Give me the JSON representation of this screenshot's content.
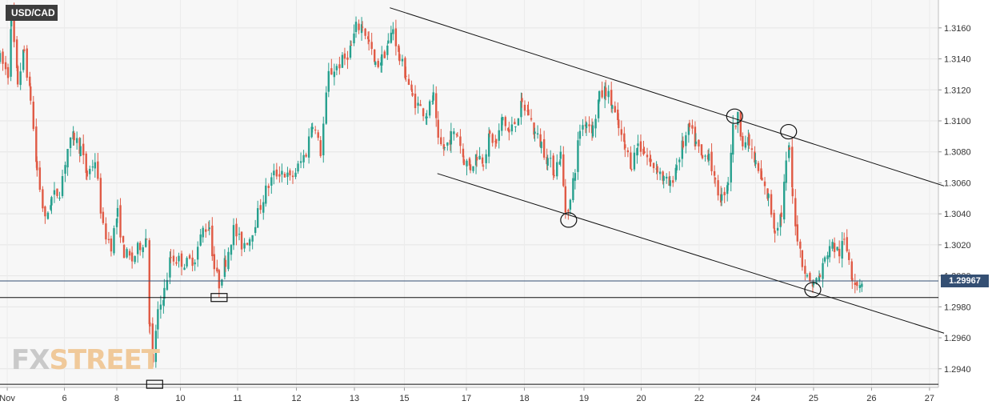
{
  "symbol": "USD/CAD",
  "watermark": {
    "fx": "FX",
    "street": "STREET"
  },
  "current_price_label": "1.29967",
  "colors": {
    "up": "#27a08e",
    "down": "#e05a45",
    "price_line": "#344f73",
    "plot_bg": "#f7f7f7"
  },
  "chart_data": {
    "type": "candlestick",
    "title": "USD/CAD",
    "ylim": [
      1.2928,
      1.3178
    ],
    "y_ticks": [
      1.294,
      1.296,
      1.298,
      1.3,
      1.302,
      1.304,
      1.306,
      1.308,
      1.31,
      1.312,
      1.314,
      1.316
    ],
    "y_tick_labels": [
      "1.2940",
      "1.2960",
      "1.2980",
      "1.3000",
      "1.3020",
      "1.3040",
      "1.3060",
      "1.3080",
      "1.3100",
      "1.3120",
      "1.3140",
      "1.3160"
    ],
    "x_range": [
      0,
      1165
    ],
    "x_ticks": [
      {
        "label": "Nov",
        "t": 9
      },
      {
        "label": "6",
        "t": 80
      },
      {
        "label": "8",
        "t": 145
      },
      {
        "label": "10",
        "t": 224
      },
      {
        "label": "11",
        "t": 295
      },
      {
        "label": "12",
        "t": 368
      },
      {
        "label": "13",
        "t": 440
      },
      {
        "label": "15",
        "t": 502
      },
      {
        "label": "17",
        "t": 579
      },
      {
        "label": "18",
        "t": 651
      },
      {
        "label": "19",
        "t": 725
      },
      {
        "label": "20",
        "t": 796
      },
      {
        "label": "22",
        "t": 868
      },
      {
        "label": "24",
        "t": 938
      },
      {
        "label": "25",
        "t": 1010
      },
      {
        "label": "26",
        "t": 1082
      },
      {
        "label": "27",
        "t": 1154
      }
    ],
    "current_price": 1.29967,
    "horizontal_levels": [
      1.2986,
      1.293
    ],
    "trend_lines": [
      {
        "from": [
          484,
          1.3173
        ],
        "to": [
          1172,
          1.3058
        ]
      },
      {
        "from": [
          543,
          1.3066
        ],
        "to": [
          1172,
          1.2963
        ]
      }
    ],
    "circle_markers": [
      [
        706,
        1.3036
      ],
      [
        912,
        1.3103
      ],
      [
        979,
        1.3093
      ],
      [
        1009,
        1.2991
      ]
    ],
    "box_markers": [
      [
        272,
        1.2986
      ],
      [
        192,
        1.293
      ]
    ],
    "price_path": [
      [
        0,
        1.314
      ],
      [
        10,
        1.313
      ],
      [
        14,
        1.3168
      ],
      [
        22,
        1.3125
      ],
      [
        30,
        1.3145
      ],
      [
        38,
        1.3115
      ],
      [
        46,
        1.3068
      ],
      [
        56,
        1.3035
      ],
      [
        64,
        1.305
      ],
      [
        74,
        1.3055
      ],
      [
        84,
        1.3082
      ],
      [
        92,
        1.309
      ],
      [
        100,
        1.3082
      ],
      [
        108,
        1.3065
      ],
      [
        118,
        1.3075
      ],
      [
        128,
        1.303
      ],
      [
        138,
        1.302
      ],
      [
        146,
        1.304
      ],
      [
        154,
        1.3015
      ],
      [
        164,
        1.301
      ],
      [
        174,
        1.302
      ],
      [
        182,
        1.3025
      ],
      [
        186,
        1.2965
      ],
      [
        190,
        1.2945
      ],
      [
        196,
        1.2975
      ],
      [
        204,
        1.299
      ],
      [
        212,
        1.3012
      ],
      [
        222,
        1.301
      ],
      [
        232,
        1.3008
      ],
      [
        242,
        1.3012
      ],
      [
        252,
        1.303
      ],
      [
        260,
        1.3032
      ],
      [
        266,
        1.3005
      ],
      [
        272,
        1.2995
      ],
      [
        280,
        1.301
      ],
      [
        290,
        1.303
      ],
      [
        300,
        1.302
      ],
      [
        310,
        1.3025
      ],
      [
        320,
        1.304
      ],
      [
        330,
        1.3055
      ],
      [
        340,
        1.3065
      ],
      [
        350,
        1.3068
      ],
      [
        360,
        1.3062
      ],
      [
        370,
        1.307
      ],
      [
        380,
        1.308
      ],
      [
        388,
        1.31
      ],
      [
        398,
        1.308
      ],
      [
        408,
        1.313
      ],
      [
        418,
        1.3135
      ],
      [
        428,
        1.314
      ],
      [
        436,
        1.3148
      ],
      [
        442,
        1.316
      ],
      [
        450,
        1.3162
      ],
      [
        458,
        1.315
      ],
      [
        466,
        1.3135
      ],
      [
        474,
        1.314
      ],
      [
        482,
        1.315
      ],
      [
        488,
        1.316
      ],
      [
        496,
        1.314
      ],
      [
        504,
        1.313
      ],
      [
        512,
        1.3115
      ],
      [
        522,
        1.3108
      ],
      [
        530,
        1.3105
      ],
      [
        538,
        1.3115
      ],
      [
        544,
        1.3085
      ],
      [
        552,
        1.3082
      ],
      [
        560,
        1.309
      ],
      [
        568,
        1.3092
      ],
      [
        576,
        1.3075
      ],
      [
        584,
        1.307
      ],
      [
        592,
        1.3078
      ],
      [
        600,
        1.3075
      ],
      [
        608,
        1.309
      ],
      [
        616,
        1.3085
      ],
      [
        624,
        1.3102
      ],
      [
        632,
        1.3092
      ],
      [
        640,
        1.31
      ],
      [
        648,
        1.311
      ],
      [
        656,
        1.3105
      ],
      [
        664,
        1.3092
      ],
      [
        672,
        1.3085
      ],
      [
        680,
        1.3075
      ],
      [
        688,
        1.3068
      ],
      [
        696,
        1.3078
      ],
      [
        702,
        1.3042
      ],
      [
        708,
        1.3048
      ],
      [
        714,
        1.307
      ],
      [
        720,
        1.3095
      ],
      [
        728,
        1.31
      ],
      [
        736,
        1.3095
      ],
      [
        744,
        1.3115
      ],
      [
        752,
        1.312
      ],
      [
        760,
        1.311
      ],
      [
        768,
        1.3095
      ],
      [
        776,
        1.3082
      ],
      [
        784,
        1.3072
      ],
      [
        792,
        1.3085
      ],
      [
        800,
        1.308
      ],
      [
        808,
        1.3072
      ],
      [
        816,
        1.307
      ],
      [
        824,
        1.3062
      ],
      [
        832,
        1.3058
      ],
      [
        840,
        1.3072
      ],
      [
        848,
        1.3085
      ],
      [
        856,
        1.3095
      ],
      [
        864,
        1.3085
      ],
      [
        872,
        1.3075
      ],
      [
        880,
        1.308
      ],
      [
        888,
        1.3058
      ],
      [
        896,
        1.305
      ],
      [
        904,
        1.3062
      ],
      [
        910,
        1.3095
      ],
      [
        916,
        1.3102
      ],
      [
        922,
        1.3088
      ],
      [
        930,
        1.3085
      ],
      [
        938,
        1.3072
      ],
      [
        946,
        1.306
      ],
      [
        954,
        1.305
      ],
      [
        962,
        1.303
      ],
      [
        970,
        1.304
      ],
      [
        976,
        1.3072
      ],
      [
        980,
        1.3082
      ],
      [
        984,
        1.305
      ],
      [
        990,
        1.3025
      ],
      [
        996,
        1.301
      ],
      [
        1002,
        1.2998
      ],
      [
        1010,
        1.2995
      ],
      [
        1018,
        1.3
      ],
      [
        1024,
        1.301
      ],
      [
        1030,
        1.302
      ],
      [
        1036,
        1.3018
      ],
      [
        1042,
        1.3015
      ],
      [
        1048,
        1.3022
      ],
      [
        1054,
        1.3012
      ],
      [
        1058,
        1.3
      ],
      [
        1064,
        1.2995
      ],
      [
        1070,
        1.2997
      ]
    ]
  }
}
